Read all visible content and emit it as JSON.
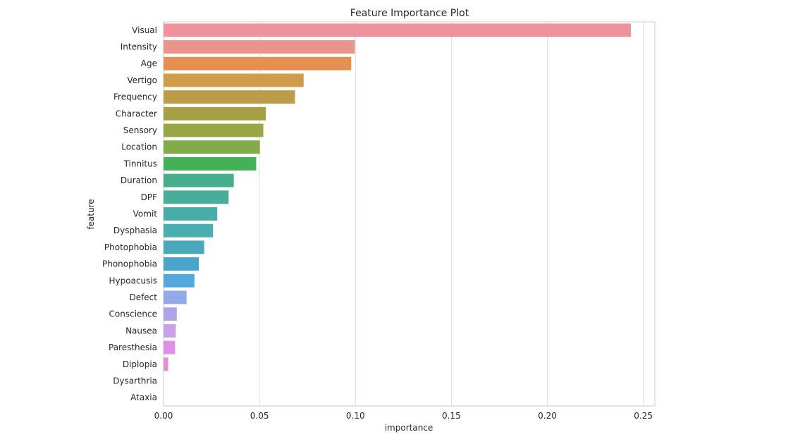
{
  "chart_data": {
    "type": "bar",
    "orientation": "horizontal",
    "title": "Feature Importance Plot",
    "xlabel": "importance",
    "ylabel": "feature",
    "xlim": [
      0,
      0.256
    ],
    "xticks": [
      "0.00",
      "0.05",
      "0.10",
      "0.15",
      "0.20",
      "0.25"
    ],
    "grid": true,
    "categories": [
      "Visual",
      "Intensity",
      "Age",
      "Vertigo",
      "Frequency",
      "Character",
      "Sensory",
      "Location",
      "Tinnitus",
      "Duration",
      "DPF",
      "Vomit",
      "Dysphasia",
      "Photophobia",
      "Phonophobia",
      "Hypoacusis",
      "Defect",
      "Conscience",
      "Nausea",
      "Paresthesia",
      "Diplopia",
      "Dysarthria",
      "Ataxia"
    ],
    "values": [
      0.2435,
      0.0997,
      0.0978,
      0.073,
      0.0685,
      0.0533,
      0.052,
      0.0502,
      0.0483,
      0.0366,
      0.0339,
      0.028,
      0.0258,
      0.0212,
      0.0184,
      0.0161,
      0.012,
      0.0069,
      0.0064,
      0.006,
      0.0024,
      0.0,
      0.0
    ],
    "colors": [
      "#f0919e",
      "#e8968b",
      "#e59050",
      "#cf9c4a",
      "#bc9c48",
      "#a5a045",
      "#98a646",
      "#82ac47",
      "#44b158",
      "#46ae8a",
      "#48ad9a",
      "#49ada7",
      "#4aadaf",
      "#4aa8bd",
      "#4ba4cc",
      "#55a8df",
      "#92aaea",
      "#ada4ea",
      "#c9a1e8",
      "#e08fe7",
      "#e68dd1",
      "#e98fc3",
      "#ec91b2"
    ]
  }
}
